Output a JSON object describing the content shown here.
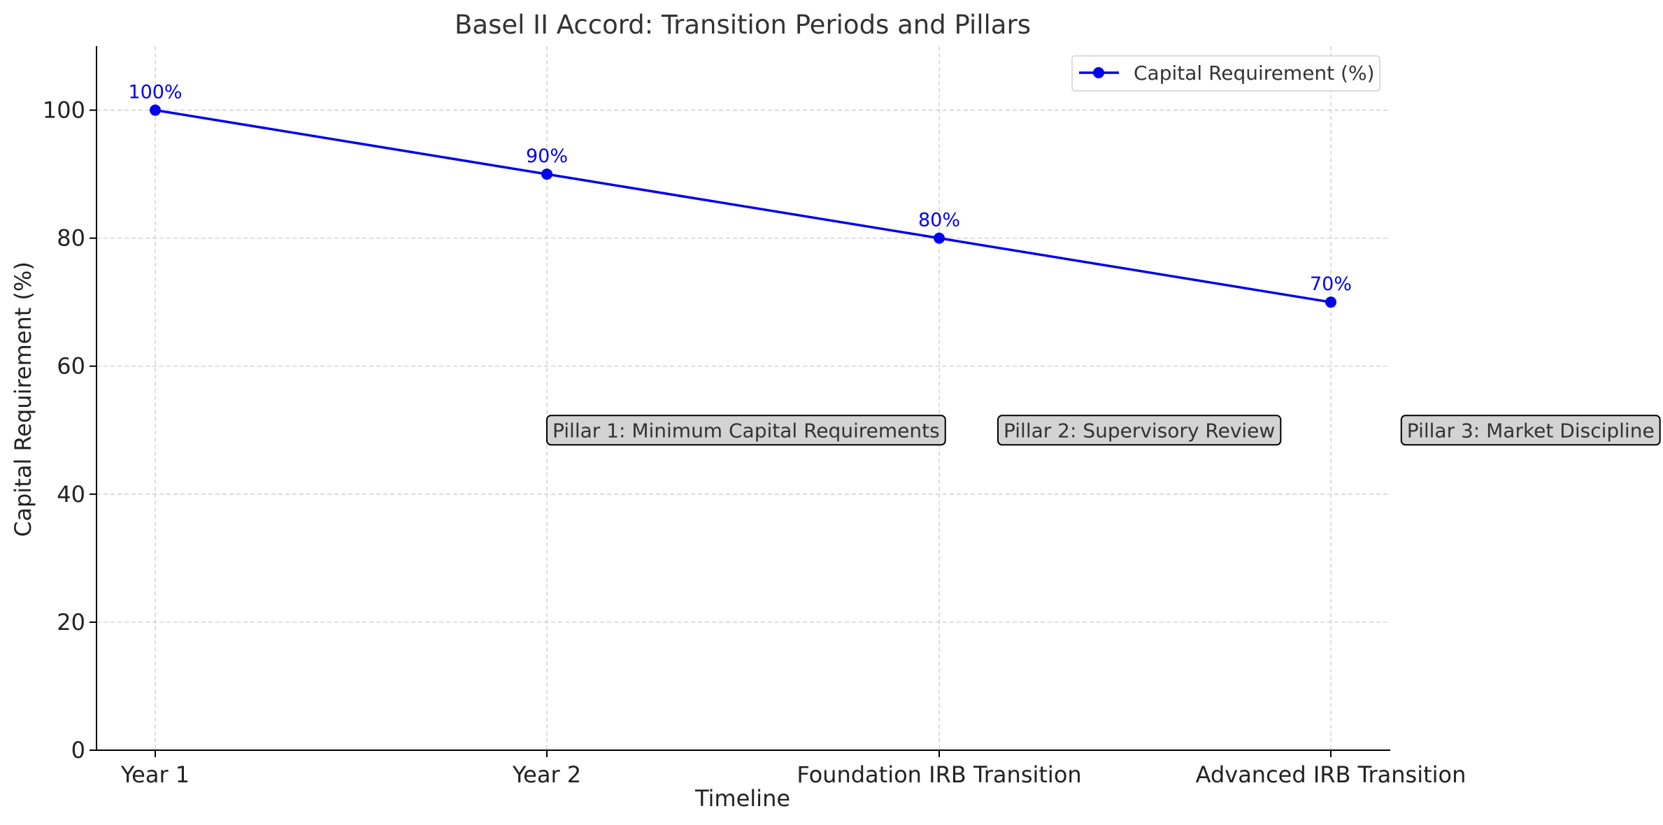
{
  "chart_data": {
    "type": "line",
    "title": "Basel II Accord: Transition Periods and Pillars",
    "xlabel": "Timeline",
    "ylabel": "Capital Requirement (%)",
    "categories": [
      "Year 1",
      "Year 2",
      "Foundation IRB Transition",
      "Advanced IRB Transition"
    ],
    "series": [
      {
        "name": "Capital Requirement (%)",
        "values": [
          100,
          90,
          80,
          70
        ],
        "labels": [
          "100%",
          "90%",
          "80%",
          "70%"
        ],
        "color": "#0000ee",
        "marker": "circle"
      }
    ],
    "ylim": [
      0,
      110
    ],
    "yticks": [
      0,
      20,
      40,
      60,
      80,
      100
    ],
    "grid": true,
    "legend_position": "top-right",
    "annotations": [
      {
        "text": "Pillar 1: Minimum Capital Requirements",
        "x": 1,
        "y": 50
      },
      {
        "text": "Pillar 2: Supervisory Review",
        "x": 2.15,
        "y": 50
      },
      {
        "text": "Pillar 3: Market Discipline",
        "x": 3.18,
        "y": 50
      }
    ],
    "colors": {
      "line": "#0000ee",
      "annotation_fill": "#d3d3d3",
      "grid": "#cccccc"
    }
  }
}
